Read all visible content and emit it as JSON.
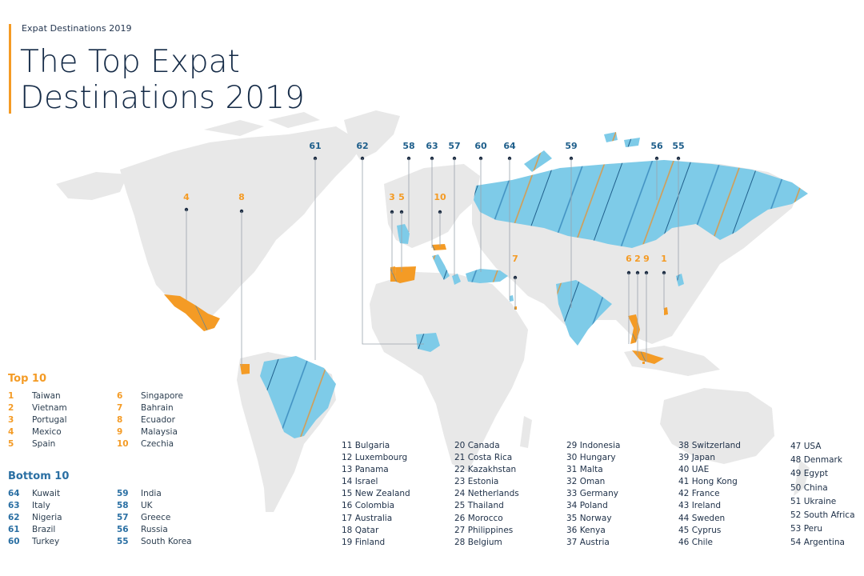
{
  "header": {
    "subtitle": "Expat Destinations 2019",
    "title_line1": "The Top Expat",
    "title_line2": "Destinations 2019"
  },
  "colors": {
    "top_accent": "#f49b25",
    "bottom_accent": "#7ecbe8",
    "bottom_line": "#1f5f8b",
    "land": "#e8e8e8",
    "title_text": "#152b47"
  },
  "map_labels": {
    "blue": [
      "61",
      "62",
      "58",
      "63",
      "57",
      "60",
      "64",
      "59",
      "56",
      "55"
    ],
    "orange": [
      "4",
      "8",
      "3",
      "5",
      "10",
      "7",
      "6",
      "2",
      "9",
      "1"
    ]
  },
  "top10": {
    "title": "Top 10",
    "col1": [
      {
        "rank": "1",
        "name": "Taiwan"
      },
      {
        "rank": "2",
        "name": "Vietnam"
      },
      {
        "rank": "3",
        "name": "Portugal"
      },
      {
        "rank": "4",
        "name": "Mexico"
      },
      {
        "rank": "5",
        "name": "Spain"
      }
    ],
    "col2": [
      {
        "rank": "6",
        "name": "Singapore"
      },
      {
        "rank": "7",
        "name": "Bahrain"
      },
      {
        "rank": "8",
        "name": "Ecuador"
      },
      {
        "rank": "9",
        "name": "Malaysia"
      },
      {
        "rank": "10",
        "name": "Czechia"
      }
    ]
  },
  "bottom10": {
    "title": "Bottom 10",
    "col1": [
      {
        "rank": "64",
        "name": "Kuwait"
      },
      {
        "rank": "63",
        "name": "Italy"
      },
      {
        "rank": "62",
        "name": "Nigeria"
      },
      {
        "rank": "61",
        "name": "Brazil"
      },
      {
        "rank": "60",
        "name": "Turkey"
      }
    ],
    "col2": [
      {
        "rank": "59",
        "name": "India"
      },
      {
        "rank": "58",
        "name": "UK"
      },
      {
        "rank": "57",
        "name": "Greece"
      },
      {
        "rank": "56",
        "name": "Russia"
      },
      {
        "rank": "55",
        "name": "South Korea"
      }
    ]
  },
  "middle": {
    "col1": [
      "11 Bulgaria",
      "12 Luxembourg",
      "13 Panama",
      "14 Israel",
      "15 New Zealand",
      "16 Colombia",
      "17 Australia",
      "18 Qatar",
      "19 Finland"
    ],
    "col2": [
      "20 Canada",
      "21 Costa Rica",
      "22 Kazakhstan",
      "23 Estonia",
      "24 Netherlands",
      "25 Thailand",
      "26 Morocco",
      "27 Philippines",
      "28 Belgium"
    ],
    "col3": [
      "29 Indonesia",
      "30 Hungary",
      "31 Malta",
      "32 Oman",
      "33 Germany",
      "34 Poland",
      "35 Norway",
      "36 Kenya",
      "37 Austria"
    ],
    "col4": [
      "38 Switzerland",
      "39 Japan",
      "40 UAE",
      "41 Hong Kong",
      "42 France",
      "43 Ireland",
      "44 Sweden",
      "45 Cyprus",
      "46 Chile"
    ],
    "col5": [
      "47 USA",
      "48 Denmark",
      "49 Egypt",
      "50 China",
      "51 Ukraine",
      "52 South Africa",
      "53 Peru",
      "54 Argentina"
    ]
  }
}
